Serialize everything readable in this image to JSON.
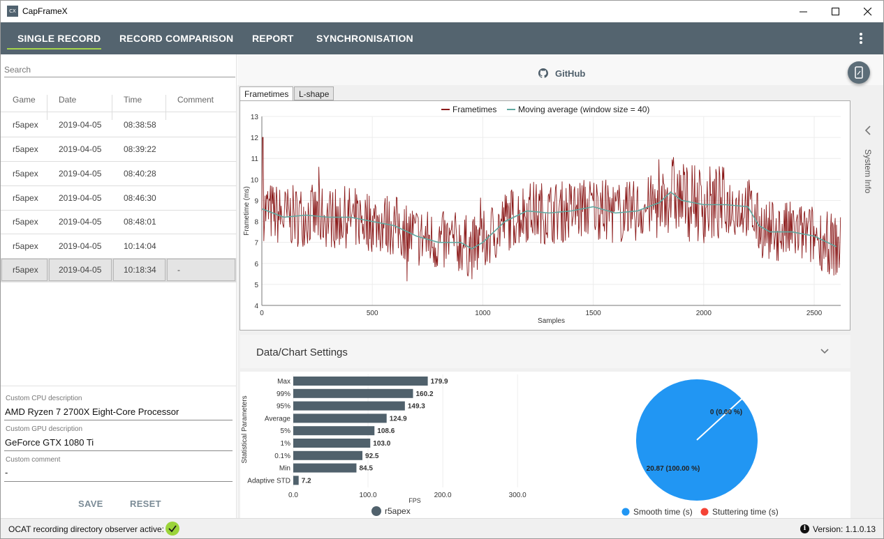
{
  "window": {
    "title": "CapFrameX",
    "icon_text": "CX"
  },
  "nav": {
    "tabs": [
      {
        "label": "SINGLE RECORD"
      },
      {
        "label": "RECORD COMPARISON"
      },
      {
        "label": "REPORT"
      },
      {
        "label": "SYNCHRONISATION"
      }
    ],
    "active_tab": "SINGLE RECORD"
  },
  "search": {
    "placeholder": "Search"
  },
  "records": {
    "columns": [
      "Game",
      "Date",
      "Time",
      "Comment"
    ],
    "rows": [
      {
        "game": "r5apex",
        "date": "2019-04-05",
        "time": "08:38:58",
        "comment": ""
      },
      {
        "game": "r5apex",
        "date": "2019-04-05",
        "time": "08:39:22",
        "comment": ""
      },
      {
        "game": "r5apex",
        "date": "2019-04-05",
        "time": "08:40:28",
        "comment": ""
      },
      {
        "game": "r5apex",
        "date": "2019-04-05",
        "time": "08:46:30",
        "comment": ""
      },
      {
        "game": "r5apex",
        "date": "2019-04-05",
        "time": "08:48:01",
        "comment": ""
      },
      {
        "game": "r5apex",
        "date": "2019-04-05",
        "time": "10:14:04",
        "comment": ""
      },
      {
        "game": "r5apex",
        "date": "2019-04-05",
        "time": "10:18:34",
        "comment": "-"
      }
    ],
    "selected_index": 6
  },
  "descriptions": {
    "cpu_label": "Custom CPU description",
    "cpu_value": "AMD Ryzen 7 2700X Eight-Core Processor",
    "gpu_label": "Custom GPU description",
    "gpu_value": "GeForce GTX 1080 Ti",
    "comment_label": "Custom comment",
    "comment_value": "-",
    "save_label": "SAVE",
    "reset_label": "RESET"
  },
  "github": {
    "label": "GitHub"
  },
  "chart_tabs": [
    {
      "label": "Frametimes"
    },
    {
      "label": "L-shape"
    }
  ],
  "side_panel": {
    "label": "System Info"
  },
  "settings": {
    "title": "Data/Chart Settings"
  },
  "colors": {
    "nav_bg": "#54646f",
    "accent": "#a5d44a",
    "frametime_line": "#8b1a1a",
    "moving_avg_line": "#5fa8a0",
    "bar": "#50616c",
    "smooth": "#2196f3",
    "stutter": "#f44336"
  },
  "chart_data": [
    {
      "type": "line",
      "legend": [
        {
          "name": "Frametimes",
          "color": "#8b1a1a"
        },
        {
          "name": "Moving average (window size = 40)",
          "color": "#5fa8a0"
        }
      ],
      "xlabel": "Samples",
      "ylabel": "Frametime (ms)",
      "xlim": [
        0,
        2620
      ],
      "ylim": [
        4,
        13
      ],
      "xticks": [
        0,
        500,
        1000,
        1500,
        2000,
        2500
      ],
      "yticks": [
        4,
        5,
        6,
        7,
        8,
        9,
        10,
        11,
        12,
        13
      ],
      "moving_average": {
        "x": [
          0,
          100,
          200,
          300,
          400,
          500,
          600,
          700,
          800,
          900,
          950,
          1000,
          1100,
          1200,
          1300,
          1400,
          1500,
          1600,
          1700,
          1800,
          1850,
          1900,
          2000,
          2100,
          2200,
          2250,
          2300,
          2400,
          2500,
          2600
        ],
        "y": [
          8.6,
          8.2,
          8.3,
          8.2,
          8.2,
          8.0,
          7.8,
          7.3,
          7.0,
          7.0,
          6.7,
          7.0,
          8.0,
          8.5,
          8.4,
          8.5,
          8.7,
          8.4,
          8.5,
          8.9,
          9.4,
          9.0,
          8.8,
          8.8,
          8.7,
          7.8,
          7.5,
          7.5,
          7.3,
          6.8
        ]
      },
      "frametimes_peak": {
        "x": 5,
        "y": 12.0
      }
    },
    {
      "type": "bar",
      "orientation": "horizontal",
      "categories": [
        "Max",
        "99%",
        "95%",
        "Average",
        "5%",
        "1%",
        "0.1%",
        "Min",
        "Adaptive STD"
      ],
      "values": [
        179.9,
        160.2,
        149.3,
        124.9,
        108.6,
        103.0,
        92.5,
        84.5,
        7.2
      ],
      "xlabel": "FPS",
      "ylabel": "Statistical Parameters",
      "xlim": [
        0,
        340
      ],
      "xticks": [
        "0.0",
        "100.0",
        "200.0",
        "300.0"
      ],
      "legend": [
        {
          "name": "r5apex",
          "color": "#50616c"
        }
      ]
    },
    {
      "type": "pie",
      "slices": [
        {
          "name": "Smooth time (s)",
          "value": 20.87,
          "label": "20.87 (100.00 %)",
          "color": "#2196f3"
        },
        {
          "name": "Stuttering time (s)",
          "value": 0,
          "label": "0 (0.00 %)",
          "color": "#f44336"
        }
      ]
    }
  ],
  "status": {
    "observer_text": "OCAT recording directory observer active:",
    "version_text": "Version:  1.1.0.13"
  }
}
